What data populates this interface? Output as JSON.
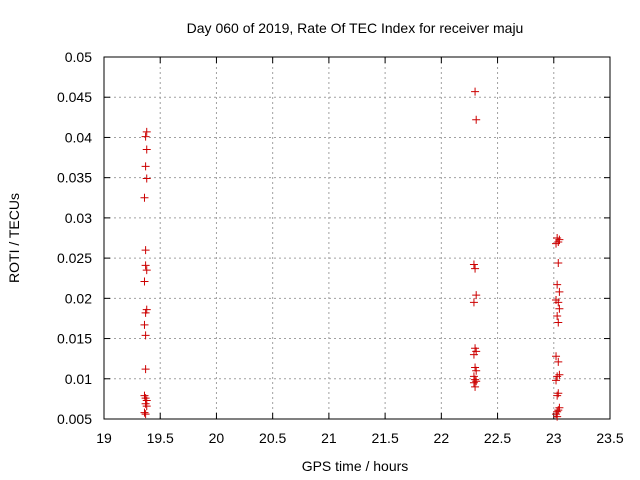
{
  "chart_data": {
    "type": "scatter",
    "title": "Day 060 of 2019, Rate Of TEC Index for receiver maju",
    "xlabel": "GPS time / hours",
    "ylabel": "ROTI / TECUs",
    "xlim": [
      19,
      23.5
    ],
    "ylim": [
      0.005,
      0.05
    ],
    "xticks": [
      19,
      19.5,
      20,
      20.5,
      21,
      21.5,
      22,
      22.5,
      23,
      23.5
    ],
    "yticks": [
      0.005,
      0.01,
      0.015,
      0.02,
      0.025,
      0.03,
      0.035,
      0.04,
      0.045,
      0.05
    ],
    "xtick_labels": [
      "19",
      "19.5",
      "20",
      "20.5",
      "21",
      "21.5",
      "22",
      "22.5",
      "23",
      "23.5"
    ],
    "ytick_labels": [
      "0.005",
      "0.01",
      "0.015",
      "0.02",
      "0.025",
      "0.03",
      "0.035",
      "0.04",
      "0.045",
      "0.05"
    ],
    "grid": true,
    "marker": "+",
    "color": "#cc0000",
    "series": [
      {
        "name": "ROTI",
        "points": [
          [
            19.38,
            0.0407
          ],
          [
            19.37,
            0.0401
          ],
          [
            19.38,
            0.0385
          ],
          [
            19.37,
            0.0364
          ],
          [
            19.38,
            0.0349
          ],
          [
            19.36,
            0.0325
          ],
          [
            19.37,
            0.026
          ],
          [
            19.37,
            0.0241
          ],
          [
            19.38,
            0.0235
          ],
          [
            19.36,
            0.0221
          ],
          [
            19.38,
            0.0186
          ],
          [
            19.37,
            0.0182
          ],
          [
            19.36,
            0.0167
          ],
          [
            19.37,
            0.0154
          ],
          [
            19.37,
            0.0112
          ],
          [
            19.36,
            0.0079
          ],
          [
            19.37,
            0.0076
          ],
          [
            19.38,
            0.0073
          ],
          [
            19.37,
            0.0069
          ],
          [
            19.38,
            0.0066
          ],
          [
            19.36,
            0.0058
          ],
          [
            19.37,
            0.0056
          ],
          [
            22.3,
            0.0457
          ],
          [
            22.31,
            0.0422
          ],
          [
            22.29,
            0.0242
          ],
          [
            22.3,
            0.0237
          ],
          [
            22.31,
            0.0204
          ],
          [
            22.29,
            0.0195
          ],
          [
            22.3,
            0.0138
          ],
          [
            22.31,
            0.0134
          ],
          [
            22.29,
            0.013
          ],
          [
            22.3,
            0.0114
          ],
          [
            22.31,
            0.011
          ],
          [
            22.29,
            0.0103
          ],
          [
            22.3,
            0.0099
          ],
          [
            22.31,
            0.0097
          ],
          [
            22.29,
            0.0095
          ],
          [
            22.3,
            0.009
          ],
          [
            23.03,
            0.0275
          ],
          [
            23.05,
            0.0273
          ],
          [
            23.04,
            0.027
          ],
          [
            23.02,
            0.0268
          ],
          [
            23.04,
            0.0244
          ],
          [
            23.03,
            0.0217
          ],
          [
            23.05,
            0.0208
          ],
          [
            23.02,
            0.0198
          ],
          [
            23.04,
            0.0195
          ],
          [
            23.05,
            0.0187
          ],
          [
            23.03,
            0.0178
          ],
          [
            23.04,
            0.017
          ],
          [
            23.02,
            0.0128
          ],
          [
            23.04,
            0.0121
          ],
          [
            23.05,
            0.0105
          ],
          [
            23.03,
            0.0103
          ],
          [
            23.02,
            0.0098
          ],
          [
            23.04,
            0.0082
          ],
          [
            23.03,
            0.0079
          ],
          [
            23.05,
            0.0064
          ],
          [
            23.04,
            0.0061
          ],
          [
            23.03,
            0.0059
          ],
          [
            23.02,
            0.0056
          ],
          [
            23.03,
            0.0053
          ]
        ]
      }
    ]
  }
}
